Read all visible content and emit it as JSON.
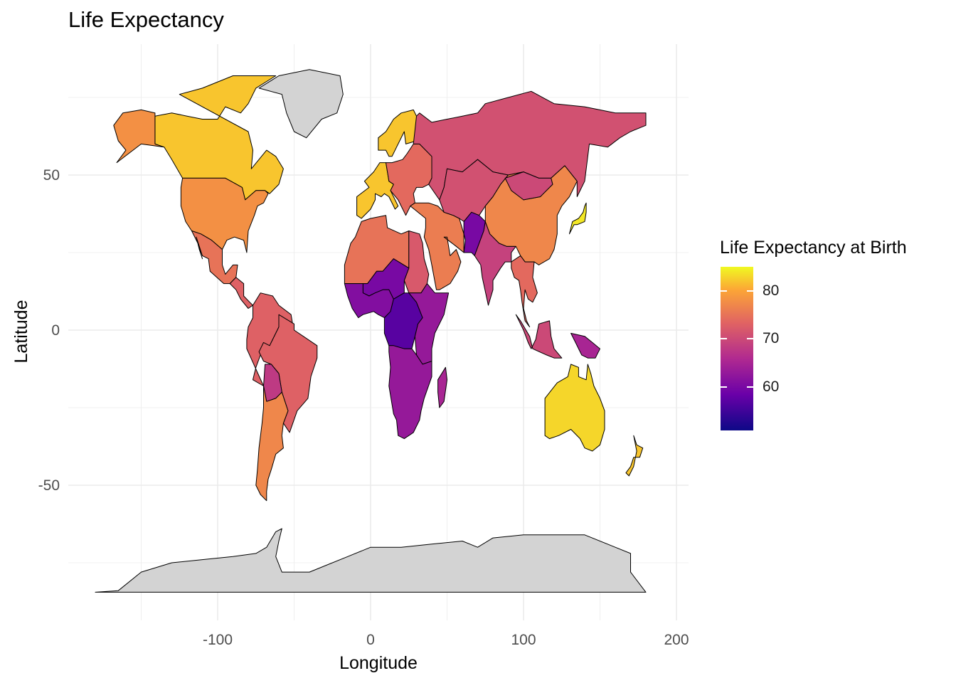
{
  "chart_data": {
    "type": "choropleth",
    "title": "Life Expectancy",
    "xlabel": "Longitude",
    "ylabel": "Latitude",
    "x_ticks": [
      -100,
      0,
      100,
      200
    ],
    "y_ticks": [
      50,
      0,
      -50
    ],
    "xlim": [
      -180,
      200
    ],
    "ylim": [
      -90,
      85
    ],
    "legend": {
      "title": "Life Expectancy at Birth",
      "ticks": [
        80,
        70,
        60
      ],
      "range": [
        51,
        85
      ],
      "palette": "plasma",
      "placement": "right"
    },
    "no_data_color": "#d3d3d3",
    "regions": [
      {
        "name": "Canada",
        "value": 82
      },
      {
        "name": "Alaska",
        "value": 78
      },
      {
        "name": "United States",
        "value": 78
      },
      {
        "name": "Mexico",
        "value": 75
      },
      {
        "name": "Central America",
        "value": 73
      },
      {
        "name": "South America North",
        "value": 73
      },
      {
        "name": "Brazil",
        "value": 73
      },
      {
        "name": "Bolivia",
        "value": 68
      },
      {
        "name": "Argentina",
        "value": 77
      },
      {
        "name": "Greenland",
        "value": null
      },
      {
        "name": "Antarctica",
        "value": null
      },
      {
        "name": "Western Europe",
        "value": 82
      },
      {
        "name": "Scandinavia",
        "value": 82
      },
      {
        "name": "Eastern Europe",
        "value": 74
      },
      {
        "name": "Russia",
        "value": 71
      },
      {
        "name": "North Africa",
        "value": 75
      },
      {
        "name": "Egypt",
        "value": 72
      },
      {
        "name": "Sahel",
        "value": 60
      },
      {
        "name": "West Africa",
        "value": 61
      },
      {
        "name": "Central Africa",
        "value": 57
      },
      {
        "name": "East Africa",
        "value": 63
      },
      {
        "name": "Southern Africa",
        "value": 63
      },
      {
        "name": "Madagascar",
        "value": 65
      },
      {
        "name": "Middle East",
        "value": 76
      },
      {
        "name": "Central Asia",
        "value": 71
      },
      {
        "name": "Afghanistan",
        "value": 60
      },
      {
        "name": "India",
        "value": 69
      },
      {
        "name": "China",
        "value": 77
      },
      {
        "name": "Mongolia",
        "value": 70
      },
      {
        "name": "Japan",
        "value": 84
      },
      {
        "name": "Southeast Asia",
        "value": 74
      },
      {
        "name": "Indonesia",
        "value": 70
      },
      {
        "name": "Papua New Guinea",
        "value": 65
      },
      {
        "name": "Australia",
        "value": 83
      },
      {
        "name": "New Zealand",
        "value": 82
      }
    ]
  }
}
